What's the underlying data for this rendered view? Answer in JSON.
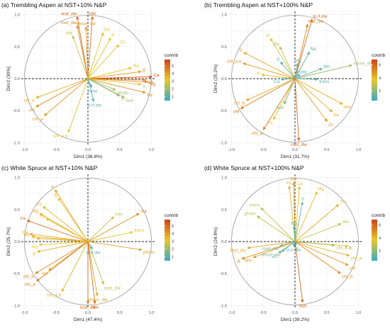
{
  "chart_data": [
    {
      "type": "scatter",
      "title": "(a) Trembling Aspen at NST+10% N&P",
      "xlabel": "Dim1 (38.8%)",
      "ylabel": "Dim2 (30%)",
      "xlim": [
        -1.05,
        1.05
      ],
      "ylim": [
        -1.05,
        1.05
      ],
      "xticks": [
        "-1.0",
        "-0.5",
        "0.0",
        "0.5",
        "1.0"
      ],
      "yticks": [
        "-1.0",
        "-0.5",
        "0.0",
        "0.5",
        "1.0"
      ],
      "legend": {
        "title": "contrib",
        "ticks": [
          "5",
          "4",
          "3",
          "2",
          "1"
        ],
        "min": 0.5,
        "max": 5.8,
        "position": "right"
      },
      "vectors": [
        {
          "name": "leaf_dw",
          "x": -0.17,
          "y": 0.97,
          "contrib": 5.0
        },
        {
          "name": "tdw",
          "x": 0.07,
          "y": 0.97,
          "contrib": 4.8
        },
        {
          "name": "root_dw",
          "x": -0.17,
          "y": 0.83,
          "contrib": 4.4
        },
        {
          "name": "shoot_dw",
          "x": -0.03,
          "y": 0.81,
          "contrib": 4.1
        },
        {
          "name": "dia",
          "x": -0.24,
          "y": 0.67,
          "contrib": 2.6
        },
        {
          "name": "TN",
          "x": 0.24,
          "y": 0.72,
          "contrib": 3.3
        },
        {
          "name": "P",
          "x": 0.36,
          "y": 0.64,
          "contrib": 3.1
        },
        {
          "name": "Zn",
          "x": 0.49,
          "y": 0.53,
          "contrib": 2.9
        },
        {
          "name": "Na",
          "x": 0.69,
          "y": 0.17,
          "contrib": 3.2
        },
        {
          "name": "B",
          "x": 0.84,
          "y": 0.11,
          "contrib": 4.1
        },
        {
          "name": "Ca",
          "x": 1.01,
          "y": 0.03,
          "contrib": 5.6
        },
        {
          "name": "Mn",
          "x": 0.91,
          "y": -0.02,
          "contrib": 4.6
        },
        {
          "name": "Mg",
          "x": 0.94,
          "y": -0.05,
          "contrib": 4.4
        },
        {
          "name": "Fe",
          "x": 0.91,
          "y": -0.22,
          "contrib": 4.2
        },
        {
          "name": "K",
          "x": 0.84,
          "y": -0.09,
          "contrib": 3.4
        },
        {
          "name": "photo",
          "x": 0.44,
          "y": -0.18,
          "contrib": 2.0
        },
        {
          "name": "heit",
          "x": 0.58,
          "y": -0.3,
          "contrib": 2.2
        },
        {
          "name": "S",
          "x": 0.5,
          "y": -0.27,
          "contrib": 1.9
        },
        {
          "name": "trans",
          "x": 0.06,
          "y": -0.14,
          "contrib": 0.7
        },
        {
          "name": "st.rt.dw",
          "x": 0.09,
          "y": -0.36,
          "contrib": 0.9
        },
        {
          "name": "chl_b",
          "x": -0.82,
          "y": -0.3,
          "contrib": 3.7
        },
        {
          "name": "chl",
          "x": -0.82,
          "y": -0.44,
          "contrib": 4.3
        },
        {
          "name": "chl_a",
          "x": -0.69,
          "y": -0.58,
          "contrib": 4.0
        },
        {
          "name": "chl_a.b",
          "x": -0.31,
          "y": -0.84,
          "contrib": 3.0
        }
      ]
    },
    {
      "type": "scatter",
      "title": "(b) Trembling Aspen at NST+100% N&P",
      "xlabel": "Dim1 (31.7%)",
      "ylabel": "Dim2 (25.2%)",
      "xlim": [
        -1.05,
        1.05
      ],
      "ylim": [
        -1.05,
        1.05
      ],
      "xticks": [
        "-1.0",
        "-0.5",
        "0.0",
        "0.5",
        "1.0"
      ],
      "yticks": [
        "-1.0",
        "-0.5",
        "0.0",
        "0.5",
        "1.0"
      ],
      "legend": {
        "title": "contrib",
        "ticks": [
          "6",
          "4",
          "2"
        ],
        "min": 0.5,
        "max": 6.8,
        "position": "right"
      },
      "vectors": [
        {
          "name": "st.rt.dw",
          "x": 0.27,
          "y": 0.93,
          "contrib": 5.8
        },
        {
          "name": "leaf_dw",
          "x": 0.2,
          "y": 0.85,
          "contrib": 5.2
        },
        {
          "name": "P",
          "x": -0.39,
          "y": 0.63,
          "contrib": 3.2
        },
        {
          "name": "dia",
          "x": -0.24,
          "y": 0.5,
          "contrib": 2.8
        },
        {
          "name": "B",
          "x": -0.81,
          "y": 0.41,
          "contrib": 4.4
        },
        {
          "name": "chl_a.b",
          "x": -0.82,
          "y": 0.24,
          "contrib": 4.8
        },
        {
          "name": "K",
          "x": -0.53,
          "y": 0.06,
          "contrib": 3.8
        },
        {
          "name": "S",
          "x": -0.23,
          "y": 0.26,
          "contrib": 1.0
        },
        {
          "name": "Mg",
          "x": 0.04,
          "y": 0.24,
          "contrib": 1.4
        },
        {
          "name": "Na",
          "x": 0.23,
          "y": 0.42,
          "contrib": 1.3
        },
        {
          "name": "Mn",
          "x": 0.43,
          "y": 0.16,
          "contrib": 1.3
        },
        {
          "name": "photo",
          "x": 0.08,
          "y": 0.07,
          "contrib": 0.8
        },
        {
          "name": "trans",
          "x": 0.36,
          "y": -0.01,
          "contrib": 1.0
        },
        {
          "name": "Ca",
          "x": -0.22,
          "y": -0.01,
          "contrib": 0.8
        },
        {
          "name": "shoot_dw",
          "x": 0.9,
          "y": 0.21,
          "contrib": 2.4
        },
        {
          "name": "tdw",
          "x": 0.75,
          "y": -0.4,
          "contrib": 4.2
        },
        {
          "name": "Fe",
          "x": 0.59,
          "y": -0.52,
          "contrib": 4.3
        },
        {
          "name": "Zn",
          "x": 0.51,
          "y": -0.67,
          "contrib": 4.6
        },
        {
          "name": "heit",
          "x": -0.17,
          "y": -0.4,
          "contrib": 1.6
        },
        {
          "name": "TN",
          "x": -0.34,
          "y": -0.64,
          "contrib": 3.9
        },
        {
          "name": "chl_b",
          "x": -0.77,
          "y": -0.34,
          "contrib": 4.5
        },
        {
          "name": "chl",
          "x": -0.86,
          "y": -0.47,
          "contrib": 5.5
        },
        {
          "name": "chl_a",
          "x": -0.5,
          "y": -0.8,
          "contrib": 5.3
        },
        {
          "name": "root_dw",
          "x": 0.06,
          "y": -0.97,
          "contrib": 5.9
        }
      ]
    },
    {
      "type": "scatter",
      "title": "(c) White Spruce at NST+10% N&P",
      "xlabel": "Dim1 (47.4%)",
      "ylabel": "Dim2 (25.7%)",
      "xlim": [
        -1.05,
        1.05
      ],
      "ylim": [
        -1.05,
        1.05
      ],
      "xticks": [
        "-1.0",
        "-0.5",
        "0.0",
        "0.5",
        "1.0"
      ],
      "yticks": [
        "-1.0",
        "-0.5",
        "0.0",
        "0.5",
        "1.0"
      ],
      "legend": {
        "title": "contrib",
        "ticks": [
          "5",
          "4",
          "3",
          "2",
          "1"
        ],
        "min": 0.5,
        "max": 5.8,
        "position": "right"
      },
      "vectors": [
        {
          "name": "K",
          "x": -0.52,
          "y": 0.81,
          "contrib": 3.8
        },
        {
          "name": "B",
          "x": -0.47,
          "y": 0.68,
          "contrib": 3.3
        },
        {
          "name": "Zn",
          "x": -0.71,
          "y": 0.55,
          "contrib": 3.4
        },
        {
          "name": "Mg",
          "x": -0.76,
          "y": 0.44,
          "contrib": 3.7
        },
        {
          "name": "TN",
          "x": -0.66,
          "y": 0.36,
          "contrib": 3.3
        },
        {
          "name": "Fe",
          "x": -0.96,
          "y": 0.33,
          "contrib": 4.9
        },
        {
          "name": "Ca",
          "x": -0.92,
          "y": 0.12,
          "contrib": 3.7
        },
        {
          "name": "Mn",
          "x": -0.89,
          "y": 0.08,
          "contrib": 3.6
        },
        {
          "name": "S",
          "x": -0.81,
          "y": 0.05,
          "contrib": 3.5
        },
        {
          "name": "Na",
          "x": -0.77,
          "y": -0.05,
          "contrib": 3.2
        },
        {
          "name": "P",
          "x": -0.8,
          "y": -0.16,
          "contrib": 3.6
        },
        {
          "name": "chl",
          "x": -0.62,
          "y": -0.45,
          "contrib": 3.9
        },
        {
          "name": "chl_b",
          "x": -0.83,
          "y": -0.5,
          "contrib": 4.4
        },
        {
          "name": "chl_a",
          "x": -0.81,
          "y": -0.62,
          "contrib": 4.6
        },
        {
          "name": "chl_a.b",
          "x": -0.41,
          "y": -0.78,
          "contrib": 3.6
        },
        {
          "name": "dia",
          "x": 0.81,
          "y": 0.44,
          "contrib": 4.2
        },
        {
          "name": "heit",
          "x": 0.41,
          "y": 0.39,
          "contrib": 2.6
        },
        {
          "name": "trans",
          "x": 0.71,
          "y": 0.15,
          "contrib": 3.1
        },
        {
          "name": "photo",
          "x": 0.85,
          "y": -0.13,
          "contrib": 3.9
        },
        {
          "name": "st.rt.dw",
          "x": 0.07,
          "y": -0.12,
          "contrib": 0.8
        },
        {
          "name": "root_dw",
          "x": 0.25,
          "y": -0.67,
          "contrib": 2.5
        },
        {
          "name": "shoot_dw",
          "x": 0.15,
          "y": -0.85,
          "contrib": 3.8
        },
        {
          "name": "leaf_dw",
          "x": 0.0,
          "y": -0.97,
          "contrib": 4.7
        },
        {
          "name": "tdw",
          "x": 0.11,
          "y": -0.97,
          "contrib": 4.9
        }
      ]
    },
    {
      "type": "scatter",
      "title": "(d) White Spruce at NST+100% N&P",
      "xlabel": "Dim1 (39.2%)",
      "ylabel": "Dim2 (24.8%)",
      "xlim": [
        -1.05,
        1.05
      ],
      "ylim": [
        -1.05,
        1.05
      ],
      "xticks": [
        "-1.0",
        "-0.5",
        "0.0",
        "0.5",
        "1.0"
      ],
      "yticks": [
        "-1.0",
        "-0.5",
        "0.0",
        "0.5",
        "1.0"
      ],
      "legend": {
        "title": "contrib",
        "ticks": [
          "6",
          "4",
          "2"
        ],
        "min": 0.5,
        "max": 6.8,
        "position": "right"
      },
      "vectors": [
        {
          "name": "Mn",
          "x": -0.02,
          "y": 0.93,
          "contrib": 4.6
        },
        {
          "name": "Fe",
          "x": -0.09,
          "y": 0.87,
          "contrib": 4.2
        },
        {
          "name": "Ca",
          "x": 0.07,
          "y": 0.86,
          "contrib": 4.0
        },
        {
          "name": "Mg",
          "x": 0.35,
          "y": 0.78,
          "contrib": 3.9
        },
        {
          "name": "TN",
          "x": 0.69,
          "y": 0.58,
          "contrib": 4.3
        },
        {
          "name": "dia",
          "x": 0.73,
          "y": 0.28,
          "contrib": 3.0
        },
        {
          "name": "S",
          "x": 0.12,
          "y": 0.62,
          "contrib": 1.5
        },
        {
          "name": "trans",
          "x": -0.54,
          "y": 0.53,
          "contrib": 2.8
        },
        {
          "name": "photo",
          "x": -0.6,
          "y": 0.4,
          "contrib": 2.9
        },
        {
          "name": "Na",
          "x": -0.01,
          "y": 0.24,
          "contrib": 0.8
        },
        {
          "name": "P",
          "x": 0.02,
          "y": -0.06,
          "contrib": 0.7
        },
        {
          "name": "K",
          "x": 0.84,
          "y": -0.07,
          "contrib": 3.7
        },
        {
          "name": "chl_a.b",
          "x": 0.63,
          "y": -0.06,
          "contrib": 2.5
        },
        {
          "name": "chl_a",
          "x": 0.86,
          "y": -0.22,
          "contrib": 4.2
        },
        {
          "name": "chl",
          "x": 0.84,
          "y": -0.37,
          "contrib": 4.8
        },
        {
          "name": "chl_b",
          "x": 0.72,
          "y": -0.5,
          "contrib": 5.0
        },
        {
          "name": "heit",
          "x": 0.12,
          "y": -0.95,
          "contrib": 5.8
        },
        {
          "name": "B",
          "x": -0.84,
          "y": -0.27,
          "contrib": 5.0
        },
        {
          "name": "leaf_dw",
          "x": -0.75,
          "y": -0.1,
          "contrib": 4.4
        },
        {
          "name": "tdw",
          "x": -0.66,
          "y": -0.25,
          "contrib": 4.6
        },
        {
          "name": "root_dw",
          "x": -0.24,
          "y": -0.07,
          "contrib": 1.6
        },
        {
          "name": "shoot_dw",
          "x": -0.21,
          "y": -0.16,
          "contrib": 1.8
        },
        {
          "name": "st.rt.dw",
          "x": -0.02,
          "y": -0.08,
          "contrib": 0.9
        },
        {
          "name": "Zn",
          "x": -0.26,
          "y": -0.18,
          "contrib": 1.4
        }
      ]
    }
  ]
}
